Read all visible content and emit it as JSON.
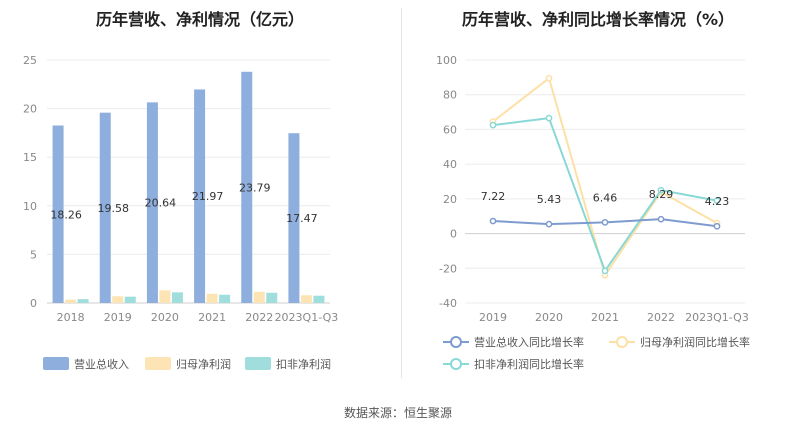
{
  "source": "数据来源：恒生聚源",
  "chart_data": [
    {
      "type": "bar",
      "title": "历年营收、净利情况（亿元）",
      "categories": [
        "2018",
        "2019",
        "2020",
        "2021",
        "2022",
        "2023Q1-Q3"
      ],
      "ylim": [
        0,
        25
      ],
      "yticks": [
        0,
        5,
        10,
        15,
        20,
        25
      ],
      "grid": true,
      "legend_position": "bottom",
      "series": [
        {
          "name": "营业总收入",
          "color": "#8eaedd",
          "values": [
            18.26,
            19.58,
            20.64,
            21.97,
            23.79,
            17.47
          ],
          "labels": [
            "18.26",
            "19.58",
            "20.64",
            "21.97",
            "23.79",
            "17.47"
          ]
        },
        {
          "name": "归母净利润",
          "color": "#fde4b4",
          "values": [
            0.35,
            0.7,
            1.3,
            0.95,
            1.15,
            0.8
          ]
        },
        {
          "name": "扣非净利润",
          "color": "#9fdedd",
          "values": [
            0.4,
            0.65,
            1.1,
            0.85,
            1.05,
            0.75
          ]
        }
      ]
    },
    {
      "type": "line",
      "title": "历年营收、净利同比增长率情况（%）",
      "categories": [
        "2019",
        "2020",
        "2021",
        "2022",
        "2023Q1-Q3"
      ],
      "ylim": [
        -40,
        100
      ],
      "yticks": [
        -40,
        -20,
        0,
        20,
        40,
        60,
        80,
        100
      ],
      "grid": true,
      "legend_position": "bottom",
      "series": [
        {
          "name": "营业总收入同比增长率",
          "color": "#7d9bcf",
          "values": [
            7.22,
            5.43,
            6.46,
            8.29,
            4.23
          ],
          "labels": [
            "7.22",
            "5.43",
            "6.46",
            "8.29",
            "4.23"
          ]
        },
        {
          "name": "归母净利润同比增长率",
          "color": "#fde0a5",
          "values": [
            64.5,
            89.5,
            -24,
            24,
            6
          ]
        },
        {
          "name": "扣非净利润同比增长率",
          "color": "#88d8d6",
          "values": [
            62.5,
            66.5,
            -21.5,
            25,
            19
          ]
        }
      ]
    }
  ]
}
